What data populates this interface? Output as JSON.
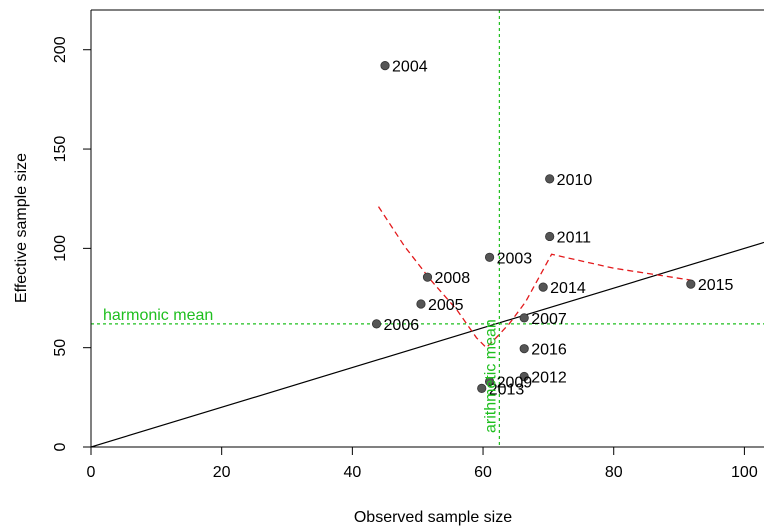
{
  "chart_data": {
    "type": "scatter",
    "title": "",
    "xlabel": "Observed sample size",
    "ylabel": "Effective sample size",
    "xlim": [
      0,
      103
    ],
    "ylim": [
      0,
      220
    ],
    "x_ticks": [
      0,
      20,
      40,
      60,
      80,
      100
    ],
    "y_ticks": [
      0,
      50,
      100,
      150,
      200
    ],
    "x_tick_labels": [
      "0",
      "20",
      "40",
      "60",
      "80",
      "100"
    ],
    "y_tick_labels": [
      "0",
      "50",
      "100",
      "150",
      "200"
    ],
    "grid": false,
    "legend": "none",
    "points": [
      {
        "label": "2004",
        "x": 45.0,
        "y": 192
      },
      {
        "label": "2010",
        "x": 70.2,
        "y": 135
      },
      {
        "label": "2011",
        "x": 70.2,
        "y": 106
      },
      {
        "label": "2003",
        "x": 61.0,
        "y": 95.5
      },
      {
        "label": "2008",
        "x": 51.5,
        "y": 85.5
      },
      {
        "label": "2014",
        "x": 69.2,
        "y": 80.5
      },
      {
        "label": "2015",
        "x": 91.8,
        "y": 82.0
      },
      {
        "label": "2005",
        "x": 50.5,
        "y": 72.0
      },
      {
        "label": "2007",
        "x": 66.3,
        "y": 65.0
      },
      {
        "label": "2006",
        "x": 43.7,
        "y": 62.0
      },
      {
        "label": "2016",
        "x": 66.3,
        "y": 49.5
      },
      {
        "label": "2012",
        "x": 66.3,
        "y": 35.5
      },
      {
        "label": "2009",
        "x": 61.0,
        "y": 33.0
      },
      {
        "label": "2013",
        "x": 59.8,
        "y": 29.5
      }
    ],
    "identity_line": {
      "slope": 1,
      "intercept": 0,
      "color": "#000000"
    },
    "harmonic_mean": {
      "label": "harmonic mean",
      "y": 62,
      "color": "#1fbf1f"
    },
    "arithmetic_mean": {
      "label": "arithmetic mean",
      "x": 62.5,
      "color": "#1fbf1f"
    },
    "dashed_curve": {
      "color": "#e31a1c",
      "x": [
        44.0,
        48.0,
        52.0,
        56.0,
        59.0,
        60.5,
        62.0,
        64.0,
        66.5,
        70.5,
        80.0,
        91.8
      ],
      "y": [
        121,
        101,
        84,
        69,
        55,
        50,
        55,
        62,
        73,
        97,
        90,
        84
      ]
    },
    "point_color": "#555555"
  }
}
